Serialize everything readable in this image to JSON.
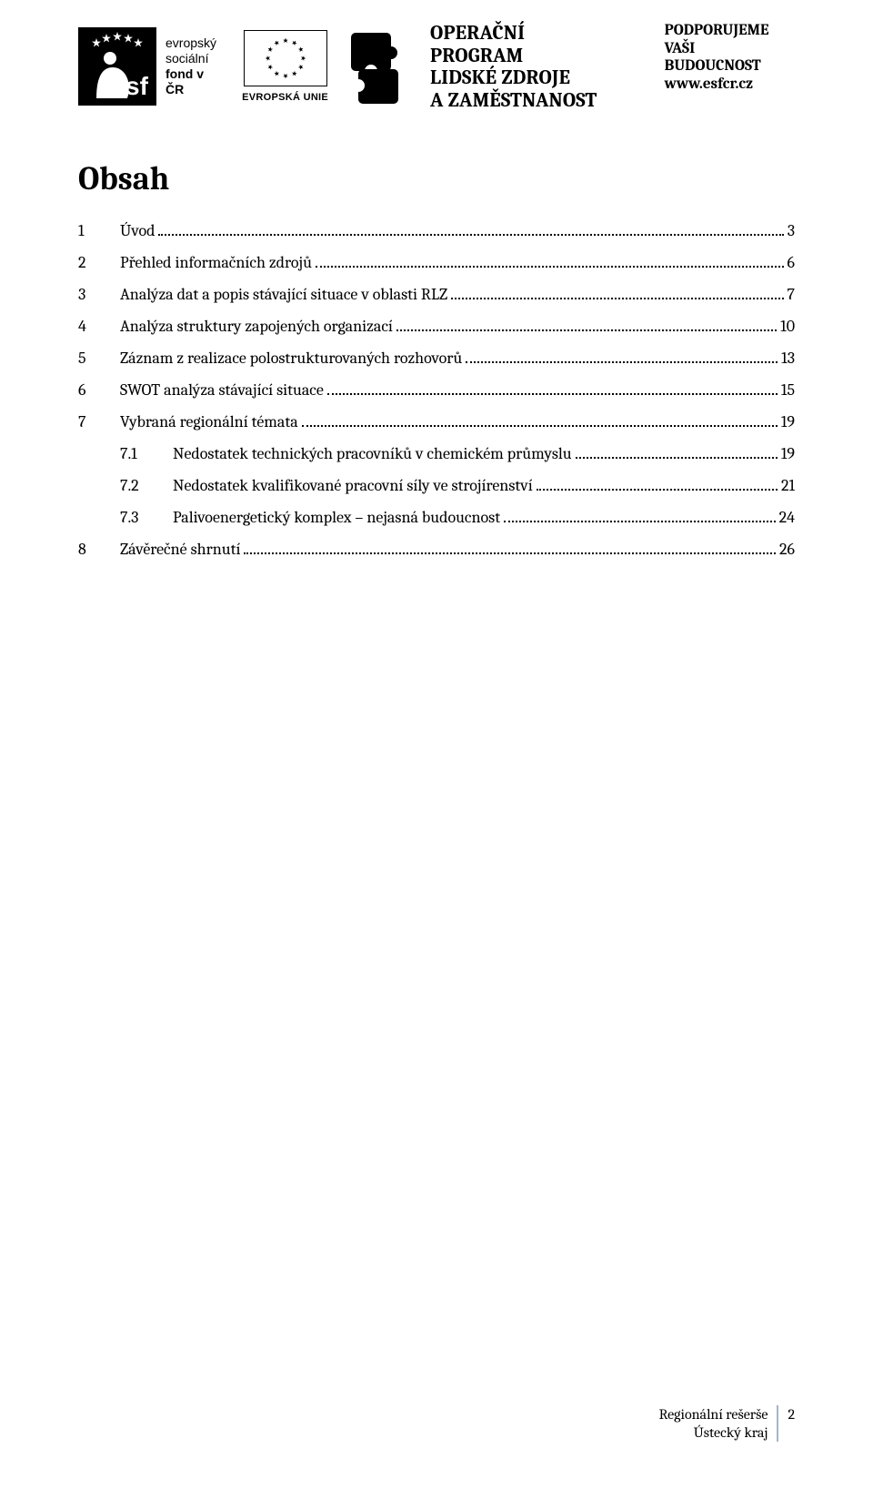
{
  "header": {
    "esf": {
      "line1": "evropský",
      "line2": "sociální",
      "line3": "fond v ČR"
    },
    "eu_label": "EVROPSKÁ UNIE",
    "program": {
      "line1": "OPERAČNÍ PROGRAM",
      "line2": "LIDSKÉ ZDROJE",
      "line3": "A ZAMĚSTNANOST"
    },
    "support": {
      "line1": "PODPORUJEME",
      "line2": "VAŠI BUDOUCNOST",
      "url": "www.esfcr.cz"
    }
  },
  "toc": {
    "title": "Obsah",
    "items": [
      {
        "num": "1",
        "label": "Úvod",
        "page": "3",
        "level": 0
      },
      {
        "num": "2",
        "label": "Přehled informačních zdrojů",
        "page": "6",
        "level": 0
      },
      {
        "num": "3",
        "label": "Analýza dat a popis stávající situace v oblasti RLZ",
        "page": "7",
        "level": 0
      },
      {
        "num": "4",
        "label": "Analýza struktury zapojených organizací",
        "page": "10",
        "level": 0
      },
      {
        "num": "5",
        "label": "Záznam z realizace polostrukturovaných rozhovorů",
        "page": "13",
        "level": 0
      },
      {
        "num": "6",
        "label": "SWOT analýza stávající situace",
        "page": "15",
        "level": 0
      },
      {
        "num": "7",
        "label": "Vybraná regionální témata",
        "page": "19",
        "level": 0
      },
      {
        "num": "7.1",
        "label": "Nedostatek technických pracovníků v chemickém průmyslu",
        "page": "19",
        "level": 1
      },
      {
        "num": "7.2",
        "label": "Nedostatek kvalifikované pracovní síly ve strojírenství",
        "page": "21",
        "level": 1
      },
      {
        "num": "7.3",
        "label": "Palivoenergetický komplex – nejasná budoucnost",
        "page": "24",
        "level": 1
      },
      {
        "num": "8",
        "label": "Závěrečné shrnutí",
        "page": "26",
        "level": 0
      }
    ]
  },
  "footer": {
    "line1": "Regionální rešerše",
    "line2": "Ústecký kraj",
    "page_number": "2",
    "divider_color": "#9fb7cc"
  },
  "colors": {
    "text": "#000000",
    "background": "#ffffff"
  }
}
